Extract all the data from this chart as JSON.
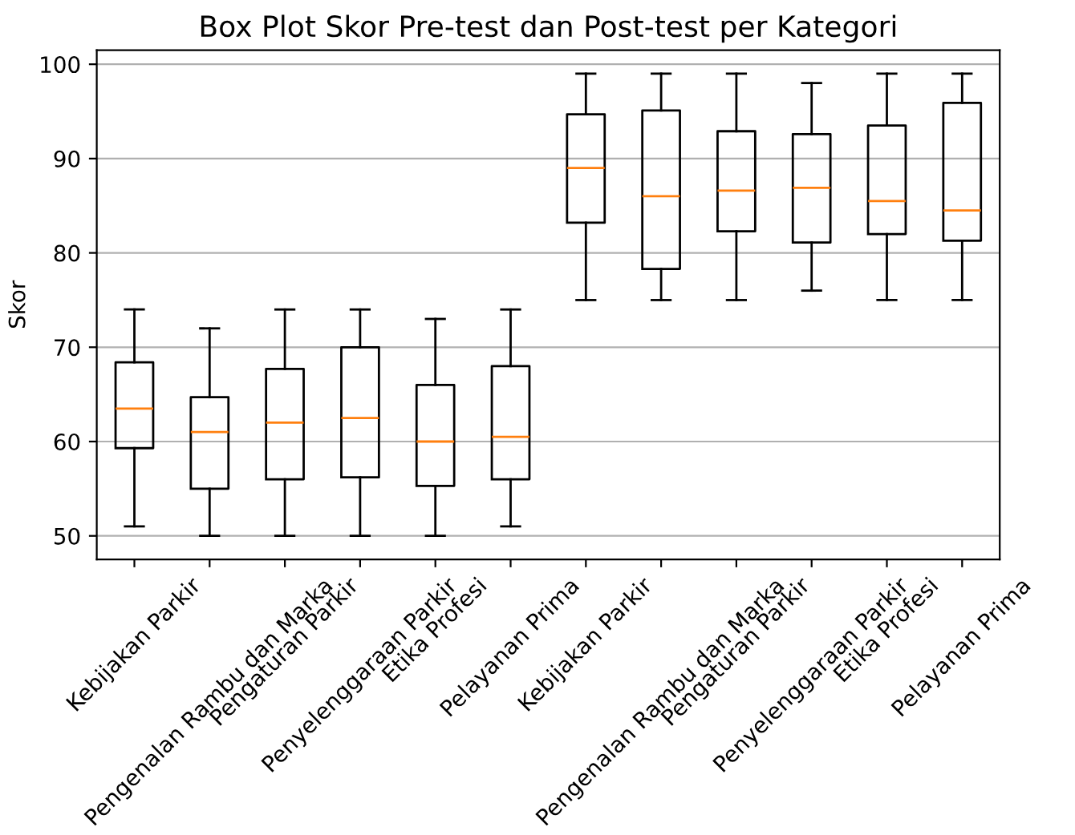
{
  "chart_data": {
    "type": "box",
    "title": "Box Plot Skor Pre-test dan Post-test per Kategori",
    "ylabel": "Skor",
    "categories": [
      "Kebijakan Parkir",
      "Pengenalan Rambu dan Marka",
      "Pengaturan Parkir",
      "Penyelenggaraan Parkir",
      "Etika Profesi",
      "Pelayanan Prima",
      "Kebijakan Parkir",
      "Pengenalan Rambu dan Marka",
      "Pengaturan Parkir",
      "Penyelenggaraan Parkir",
      "Etika Profesi",
      "Pelayanan Prima"
    ],
    "boxes": [
      {
        "low": 51,
        "q1": 59.3,
        "median": 63.5,
        "q3": 68.4,
        "high": 74
      },
      {
        "low": 50,
        "q1": 55,
        "median": 61,
        "q3": 64.7,
        "high": 72
      },
      {
        "low": 50,
        "q1": 56,
        "median": 62,
        "q3": 67.7,
        "high": 74
      },
      {
        "low": 50,
        "q1": 56.2,
        "median": 62.5,
        "q3": 70,
        "high": 74
      },
      {
        "low": 50,
        "q1": 55.3,
        "median": 60,
        "q3": 66,
        "high": 73
      },
      {
        "low": 51,
        "q1": 56,
        "median": 60.5,
        "q3": 68,
        "high": 74
      },
      {
        "low": 75,
        "q1": 83.2,
        "median": 89,
        "q3": 94.7,
        "high": 99
      },
      {
        "low": 75,
        "q1": 78.3,
        "median": 86,
        "q3": 95.1,
        "high": 99
      },
      {
        "low": 75,
        "q1": 82.3,
        "median": 86.6,
        "q3": 92.9,
        "high": 99
      },
      {
        "low": 76,
        "q1": 81.1,
        "median": 86.9,
        "q3": 92.6,
        "high": 98
      },
      {
        "low": 75,
        "q1": 82,
        "median": 85.5,
        "q3": 93.5,
        "high": 99
      },
      {
        "low": 75,
        "q1": 81.3,
        "median": 84.5,
        "q3": 95.9,
        "high": 99
      }
    ],
    "ylim": [
      47.5,
      101.5
    ],
    "yticks": [
      50,
      60,
      70,
      80,
      90,
      100
    ],
    "grid": "y"
  }
}
